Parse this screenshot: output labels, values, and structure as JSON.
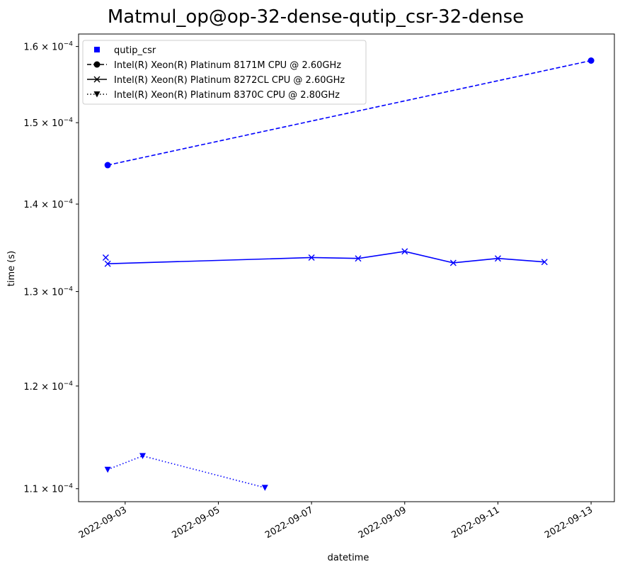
{
  "chart_data": {
    "type": "line",
    "title": "Matmul_op@op-32-dense-qutip_csr-32-dense",
    "xlabel": "datetime",
    "ylabel": "time (s)",
    "yscale": "log",
    "xlim": [
      "2022-09-02T00:00",
      "2022-09-13T12:00"
    ],
    "ylim": [
      0.0001088,
      0.0001617
    ],
    "xticks": [
      "2022-09-03",
      "2022-09-05",
      "2022-09-07",
      "2022-09-09",
      "2022-09-11",
      "2022-09-13"
    ],
    "yticks": [
      {
        "value": 0.00011,
        "mantissa": "1.1",
        "exponent": "−4"
      },
      {
        "value": 0.00012,
        "mantissa": "1.2",
        "exponent": "−4"
      },
      {
        "value": 0.00013,
        "mantissa": "1.3",
        "exponent": "−4"
      },
      {
        "value": 0.00014,
        "mantissa": "1.4",
        "exponent": "−4"
      },
      {
        "value": 0.00015,
        "mantissa": "1.5",
        "exponent": "−4"
      },
      {
        "value": 0.00016,
        "mantissa": "1.6",
        "exponent": "−4"
      }
    ],
    "grid": false,
    "legend_position": "top-left",
    "color": "#0000ff",
    "legend": [
      {
        "label": "qutip_csr",
        "marker": "square",
        "line": "none",
        "color": "#0000ff"
      },
      {
        "label": "Intel(R) Xeon(R) Platinum 8171M CPU @ 2.60GHz",
        "marker": "circle",
        "line": "dashed",
        "color": "#000000"
      },
      {
        "label": "Intel(R) Xeon(R) Platinum 8272CL CPU @ 2.60GHz",
        "marker": "x",
        "line": "solid",
        "color": "#000000"
      },
      {
        "label": "Intel(R) Xeon(R) Platinum 8370C CPU @ 2.80GHz",
        "marker": "triangle-down",
        "line": "dotted",
        "color": "#000000"
      }
    ],
    "series": [
      {
        "cpu": "Intel(R) Xeon(R) Platinum 8171M CPU @ 2.60GHz",
        "marker": "circle",
        "line": "dashed",
        "points": [
          {
            "x": "2022-09-02T15:00",
            "y": 0.0001447
          },
          {
            "x": "2022-09-13T00:00",
            "y": 0.0001581
          }
        ]
      },
      {
        "cpu": "Intel(R) Xeon(R) Platinum 8272CL CPU @ 2.60GHz",
        "marker": "x",
        "line": "solid",
        "points": [
          {
            "x": "2022-09-02T14:00",
            "y": 0.0001338
          },
          {
            "x": "2022-09-02T15:00",
            "y": 0.0001331
          },
          {
            "x": "2022-09-07T00:00",
            "y": 0.0001338
          },
          {
            "x": "2022-09-08T00:00",
            "y": 0.0001337
          },
          {
            "x": "2022-09-09T00:00",
            "y": 0.0001345
          },
          {
            "x": "2022-09-10T01:00",
            "y": 0.0001332
          },
          {
            "x": "2022-09-11T00:00",
            "y": 0.0001337
          },
          {
            "x": "2022-09-12T00:00",
            "y": 0.0001333
          }
        ]
      },
      {
        "cpu": "Intel(R) Xeon(R) Platinum 8370C CPU @ 2.80GHz",
        "marker": "triangle-down",
        "line": "dotted",
        "points": [
          {
            "x": "2022-09-02T15:00",
            "y": 0.0001118
          },
          {
            "x": "2022-09-03T09:00",
            "y": 0.0001131
          },
          {
            "x": "2022-09-06T00:00",
            "y": 0.0001101
          }
        ]
      }
    ]
  }
}
